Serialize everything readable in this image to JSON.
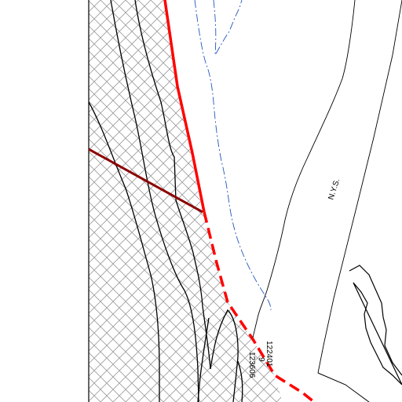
{
  "map": {
    "labels": {
      "road_name": "N.Y.S.",
      "parcel_a": "122401",
      "parcel_b": "123606",
      "parcel_c": "9"
    },
    "colors": {
      "background": "#ffffff",
      "boundary_red": "#ff0000",
      "parcel_line": "#000000",
      "water_line": "#2255bb",
      "hatch": "#9a9a9a",
      "dark_red_line": "#8b0000"
    },
    "features": [
      "hatched-area",
      "red-boundary-solid",
      "red-boundary-dashed",
      "dark-red-line",
      "blue-waterline",
      "parcel-lines",
      "island-outline"
    ]
  }
}
